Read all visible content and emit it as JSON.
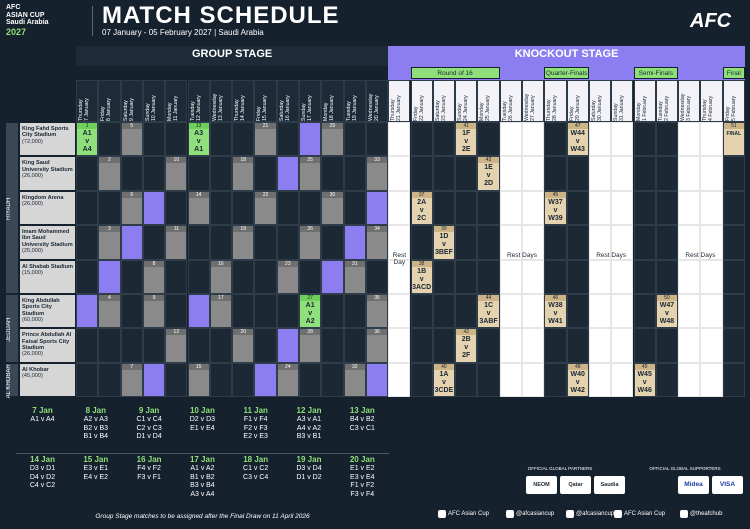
{
  "header": {
    "brand": [
      "AFC",
      "ASIAN CUP",
      "Saudi Arabia",
      "2027"
    ],
    "title": "MATCH SCHEDULE",
    "subtitle": "07 January - 05 February 2027 | Saudi Arabia",
    "logo": "AFC"
  },
  "stages": {
    "group": "GROUP STAGE",
    "knockout": "KNOCKOUT STAGE",
    "rounds": [
      "Round of 16",
      "Quarter-Finals",
      "Semi-Finals",
      "Final"
    ]
  },
  "days": [
    {
      "weekday": "Thursday",
      "date": "7 January"
    },
    {
      "weekday": "Friday",
      "date": "8 January"
    },
    {
      "weekday": "Saturday",
      "date": "9 January"
    },
    {
      "weekday": "Sunday",
      "date": "10 January"
    },
    {
      "weekday": "Monday",
      "date": "11 January"
    },
    {
      "weekday": "Tuesday",
      "date": "12 January"
    },
    {
      "weekday": "Wednesday",
      "date": "13 January"
    },
    {
      "weekday": "Thursday",
      "date": "14 January"
    },
    {
      "weekday": "Friday",
      "date": "15 January"
    },
    {
      "weekday": "Saturday",
      "date": "16 January"
    },
    {
      "weekday": "Sunday",
      "date": "17 January"
    },
    {
      "weekday": "Monday",
      "date": "18 January"
    },
    {
      "weekday": "Tuesday",
      "date": "19 January"
    },
    {
      "weekday": "Wednesday",
      "date": "20 January"
    },
    {
      "weekday": "Thursday",
      "date": "21 January"
    },
    {
      "weekday": "Friday",
      "date": "22 January"
    },
    {
      "weekday": "Saturday",
      "date": "23 January"
    },
    {
      "weekday": "Sunday",
      "date": "24 January"
    },
    {
      "weekday": "Monday",
      "date": "25 January"
    },
    {
      "weekday": "Tuesday",
      "date": "26 January"
    },
    {
      "weekday": "Wednesday",
      "date": "27 January"
    },
    {
      "weekday": "Thursday",
      "date": "28 January"
    },
    {
      "weekday": "Friday",
      "date": "29 January"
    },
    {
      "weekday": "Saturday",
      "date": "30 January"
    },
    {
      "weekday": "Sunday",
      "date": "31 January"
    },
    {
      "weekday": "Monday",
      "date": "1 February"
    },
    {
      "weekday": "Tuesday",
      "date": "2 February"
    },
    {
      "weekday": "Wednesday",
      "date": "3 February"
    },
    {
      "weekday": "Thursday",
      "date": "4 February"
    },
    {
      "weekday": "Friday",
      "date": "5 February"
    }
  ],
  "regions": [
    "RIYADH",
    "JEDDAH",
    "AL KHOBAR"
  ],
  "venues": [
    {
      "name": "King Fahd Sports City Stadium",
      "capacity": "(72,000)"
    },
    {
      "name": "King Saud University Stadium",
      "capacity": "(26,000)"
    },
    {
      "name": "Kingdom Arena",
      "capacity": "(26,000)"
    },
    {
      "name": "Imam Mohammed Ibn Saud University Stadium",
      "capacity": "(25,000)"
    },
    {
      "name": "Al Shabab Stadium",
      "capacity": "(15,000)"
    },
    {
      "name": "King Abdullah Sports City Stadium",
      "capacity": "(60,000)"
    },
    {
      "name": "Prince Abdullah Al Faisal Sports City Stadium",
      "capacity": "(26,000)"
    },
    {
      "name": "Al Khobar",
      "capacity": "(45,000)"
    }
  ],
  "matches": [
    {
      "no": 1,
      "lines": [
        "A1",
        "v",
        "A4"
      ]
    },
    {
      "no": 2
    },
    {
      "no": 3
    },
    {
      "no": 4
    },
    {
      "no": 5
    },
    {
      "no": 6
    },
    {
      "no": 7
    },
    {
      "no": 8
    },
    {
      "no": 9
    },
    {
      "no": 10
    },
    {
      "no": 11
    },
    {
      "no": 12
    },
    {
      "no": 13,
      "lines": [
        "A3",
        "v",
        "A1"
      ]
    },
    {
      "no": 14
    },
    {
      "no": 15
    },
    {
      "no": 16
    },
    {
      "no": 17
    },
    {
      "no": 18
    },
    {
      "no": 19
    },
    {
      "no": 20
    },
    {
      "no": 21
    },
    {
      "no": 22
    },
    {
      "no": 23
    },
    {
      "no": 24
    },
    {
      "no": 25
    },
    {
      "no": 26
    },
    {
      "no": 27,
      "lines": [
        "A1",
        "v",
        "A2"
      ]
    },
    {
      "no": 28
    },
    {
      "no": 29
    },
    {
      "no": 30
    },
    {
      "no": 31
    },
    {
      "no": 32
    },
    {
      "no": 33
    },
    {
      "no": 34
    },
    {
      "no": 35
    },
    {
      "no": 36
    },
    {
      "no": 37,
      "lines": [
        "2A",
        "v",
        "2C"
      ]
    },
    {
      "no": 38,
      "lines": [
        "1B",
        "v",
        "3ACD"
      ]
    },
    {
      "no": 39,
      "lines": [
        "1D",
        "v",
        "3BEF"
      ]
    },
    {
      "no": 40,
      "lines": [
        "1A",
        "v",
        "3CDE"
      ]
    },
    {
      "no": 41,
      "lines": [
        "1F",
        "v",
        "2E"
      ]
    },
    {
      "no": 42,
      "lines": [
        "2B",
        "v",
        "2F"
      ]
    },
    {
      "no": 43,
      "lines": [
        "1E",
        "v",
        "2D"
      ]
    },
    {
      "no": 44,
      "lines": [
        "1C",
        "v",
        "3ABF"
      ]
    },
    {
      "no": 45,
      "lines": [
        "W37",
        "v",
        "W39"
      ]
    },
    {
      "no": 46,
      "lines": [
        "W38",
        "v",
        "W41"
      ]
    },
    {
      "no": 47,
      "lines": [
        "W44",
        "v",
        "W43"
      ]
    },
    {
      "no": 48,
      "lines": [
        "W40",
        "v",
        "W42"
      ]
    },
    {
      "no": 49,
      "lines": [
        "W45",
        "v",
        "W46"
      ]
    },
    {
      "no": 50,
      "lines": [
        "W47",
        "v",
        "W48"
      ]
    },
    {
      "no": 51,
      "lines": [
        "FINAL"
      ]
    }
  ],
  "rest": [
    "Rest Day",
    "Rest Days",
    "Rest Days",
    "Rest Days"
  ],
  "fixtures": [
    {
      "date": "7 Jan",
      "games": [
        "A1 v A4"
      ]
    },
    {
      "date": "8 Jan",
      "games": [
        "A2 v A3",
        "B2 v B3",
        "B1 v B4"
      ]
    },
    {
      "date": "9 Jan",
      "games": [
        "C1 v C4",
        "C2 v C3",
        "D1 v D4"
      ]
    },
    {
      "date": "10 Jan",
      "games": [
        "D2 v D3",
        "E1 v E4"
      ]
    },
    {
      "date": "11 Jan",
      "games": [
        "F1 v F4",
        "F2 v F3",
        "E2 v E3"
      ]
    },
    {
      "date": "12 Jan",
      "games": [
        "A3 v A1",
        "A4 v A2",
        "B3 v B1"
      ]
    },
    {
      "date": "13 Jan",
      "games": [
        "B4 v B2",
        "C3 v C1"
      ]
    },
    {
      "date": "14 Jan",
      "games": [
        "D3 v D1",
        "D4 v D2",
        "C4 v C2"
      ]
    },
    {
      "date": "15 Jan",
      "games": [
        "E3 v E1",
        "E4 v E2"
      ]
    },
    {
      "date": "16 Jan",
      "games": [
        "F4 v F2",
        "F3 v F1"
      ]
    },
    {
      "date": "17 Jan",
      "games": [
        "A1 v A2",
        "B1 v B2",
        "B3 v B4",
        "A3 v A4"
      ]
    },
    {
      "date": "18 Jan",
      "games": [
        "C1 v C2",
        "C3 v C4"
      ]
    },
    {
      "date": "19 Jan",
      "games": [
        "D3 v D4",
        "D1 v D2"
      ]
    },
    {
      "date": "20 Jan",
      "games": [
        "E1 v E2",
        "E3 v E4",
        "F1 v F2",
        "F3 v F4"
      ]
    }
  ],
  "footnote": "Group Stage matches to be assigned after the Final Draw on 11 April 2026",
  "partners": {
    "partners_title": "OFFICIAL GLOBAL PARTNERS",
    "partners": [
      "NEOM",
      "Qatar Airways",
      "Saudia"
    ],
    "supporters_title": "OFFICIAL GLOBAL SUPPORTERS",
    "supporters": [
      "Midea",
      "VISA"
    ]
  },
  "social": [
    "AFC Asian Cup",
    "@afcasiancup",
    "@afcasiancup",
    "AFC Asian Cup",
    "@theafchub"
  ]
}
